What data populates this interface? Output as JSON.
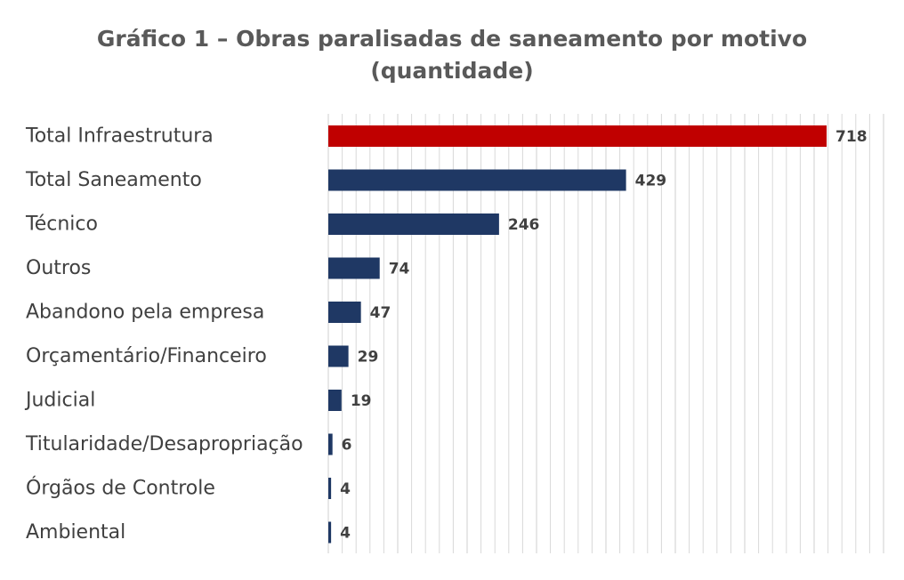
{
  "chart_data": {
    "type": "bar",
    "orientation": "horizontal",
    "title": "Gráfico 1 – Obras paralisadas de saneamento por motivo (quantidade)",
    "title_lines": [
      "Gráfico 1 – Obras paralisadas de saneamento por motivo",
      "(quantidade)"
    ],
    "categories": [
      "Total Infraestrutura",
      "Total Saneamento",
      "Técnico",
      "Outros",
      "Abandono pela empresa",
      "Orçamentário/Financeiro",
      "Judicial",
      "Titularidade/Desapropriação",
      "Órgãos de Controle",
      "Ambiental"
    ],
    "values": [
      718,
      429,
      246,
      74,
      47,
      29,
      19,
      6,
      4,
      4
    ],
    "value_labels": [
      "718",
      "429",
      "246",
      "74",
      "47",
      "29",
      "19",
      "6",
      "4",
      "4"
    ],
    "bar_colors": [
      "#c00000",
      "#1f3864",
      "#1f3864",
      "#1f3864",
      "#1f3864",
      "#1f3864",
      "#1f3864",
      "#1f3864",
      "#1f3864",
      "#1f3864"
    ],
    "xlim": [
      0,
      800
    ],
    "grid": true,
    "legend": "none",
    "xlabel": "",
    "ylabel": ""
  }
}
